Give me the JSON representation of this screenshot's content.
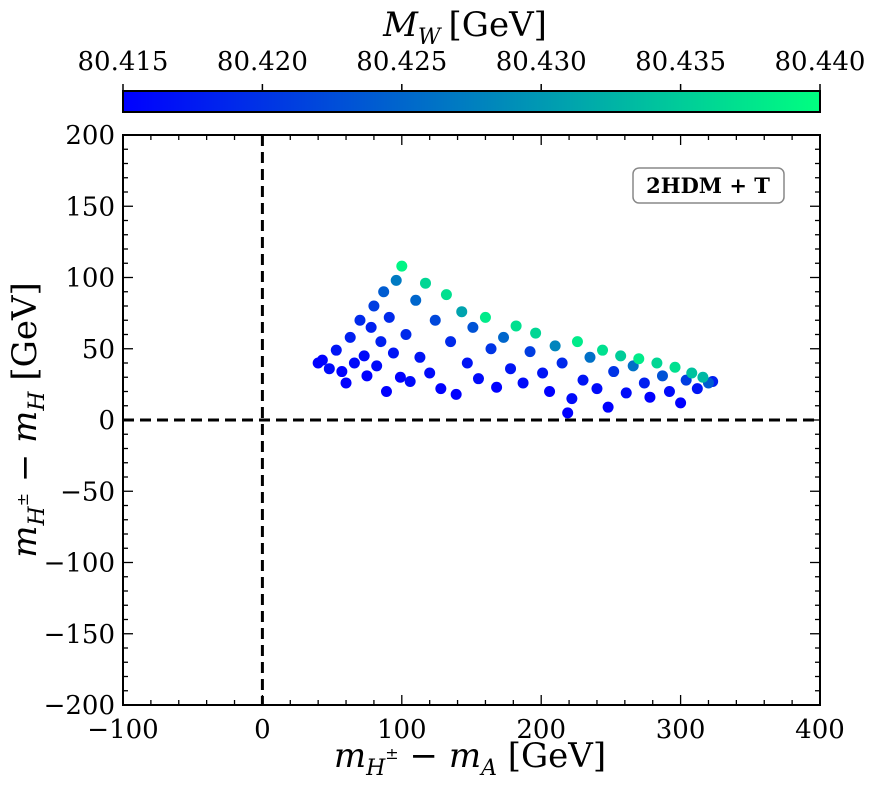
{
  "chart_data": {
    "type": "scatter",
    "title": "",
    "colorbar": {
      "label": "M_W [GeV]",
      "label_main": "M",
      "label_sub": "W",
      "label_unit": "[GeV]",
      "range": [
        80.415,
        80.44
      ],
      "ticks": [
        80.415,
        80.42,
        80.425,
        80.43,
        80.435,
        80.44
      ],
      "tick_labels": [
        "80.415",
        "80.420",
        "80.425",
        "80.430",
        "80.435",
        "80.440"
      ],
      "colormap": "winter",
      "color_low": "#0000ff",
      "color_high": "#00ff80",
      "placement": "top"
    },
    "xlabel": "m_{H±} − m_A [GeV]",
    "xlabel_parts": {
      "m1": "m",
      "sub1": "H",
      "sup1": "±",
      "minus": " − ",
      "m2": "m",
      "sub2": "A",
      "unit": " [GeV]"
    },
    "ylabel": "m_{H±} − m_H [GeV]",
    "ylabel_parts": {
      "m1": "m",
      "sub1": "H",
      "sup1": "±",
      "minus": " − ",
      "m2": "m",
      "sub2": "H",
      "unit": " [GeV]"
    },
    "xlim": [
      -100,
      400
    ],
    "ylim": [
      -200,
      200
    ],
    "xticks": [
      -100,
      0,
      100,
      200,
      300,
      400
    ],
    "xtick_labels": [
      "−100",
      "0",
      "100",
      "200",
      "300",
      "400"
    ],
    "yticks": [
      -200,
      -150,
      -100,
      -50,
      0,
      50,
      100,
      150,
      200
    ],
    "ytick_labels": [
      "−200",
      "−150",
      "−100",
      "−50",
      "0",
      "50",
      "100",
      "150",
      "200"
    ],
    "grid": false,
    "reference_lines": [
      {
        "orientation": "vertical",
        "value": 0,
        "style": "dashed"
      },
      {
        "orientation": "horizontal",
        "value": 0,
        "style": "dashed"
      }
    ],
    "legend": {
      "text": "2HDM + T",
      "position": "top-right"
    },
    "marker_color": "#1a3cff",
    "points": [
      [
        40,
        40,
        80.415
      ],
      [
        43,
        42,
        80.415
      ],
      [
        48,
        36,
        80.416
      ],
      [
        53,
        49,
        80.417
      ],
      [
        57,
        34,
        80.415
      ],
      [
        60,
        26,
        80.415
      ],
      [
        63,
        58,
        80.418
      ],
      [
        66,
        40,
        80.416
      ],
      [
        70,
        70,
        80.419
      ],
      [
        73,
        45,
        80.416
      ],
      [
        75,
        31,
        80.415
      ],
      [
        78,
        65,
        80.418
      ],
      [
        80,
        80,
        80.421
      ],
      [
        82,
        38,
        80.416
      ],
      [
        85,
        55,
        80.418
      ],
      [
        87,
        90,
        80.424
      ],
      [
        89,
        20,
        80.415
      ],
      [
        91,
        72,
        80.419
      ],
      [
        94,
        47,
        80.417
      ],
      [
        96,
        98,
        80.427
      ],
      [
        99,
        30,
        80.415
      ],
      [
        100,
        108,
        80.439
      ],
      [
        103,
        60,
        80.419
      ],
      [
        106,
        27,
        80.416
      ],
      [
        110,
        84,
        80.425
      ],
      [
        113,
        44,
        80.417
      ],
      [
        117,
        96,
        80.436
      ],
      [
        120,
        33,
        80.416
      ],
      [
        124,
        70,
        80.422
      ],
      [
        128,
        22,
        80.415
      ],
      [
        132,
        88,
        80.437
      ],
      [
        135,
        55,
        80.419
      ],
      [
        139,
        18,
        80.415
      ],
      [
        143,
        76,
        80.431
      ],
      [
        147,
        40,
        80.417
      ],
      [
        151,
        65,
        80.423
      ],
      [
        155,
        29,
        80.416
      ],
      [
        160,
        72,
        80.438
      ],
      [
        164,
        50,
        80.42
      ],
      [
        168,
        23,
        80.415
      ],
      [
        173,
        58,
        80.425
      ],
      [
        178,
        36,
        80.417
      ],
      [
        182,
        66,
        80.437
      ],
      [
        187,
        26,
        80.416
      ],
      [
        192,
        48,
        80.421
      ],
      [
        196,
        61,
        80.436
      ],
      [
        201,
        33,
        80.417
      ],
      [
        206,
        20,
        80.415
      ],
      [
        210,
        52,
        80.428
      ],
      [
        215,
        40,
        80.419
      ],
      [
        219,
        5,
        80.415
      ],
      [
        222,
        15,
        80.416
      ],
      [
        226,
        55,
        80.438
      ],
      [
        230,
        28,
        80.417
      ],
      [
        235,
        44,
        80.426
      ],
      [
        240,
        22,
        80.416
      ],
      [
        244,
        49,
        80.437
      ],
      [
        248,
        9,
        80.415
      ],
      [
        252,
        34,
        80.42
      ],
      [
        257,
        45,
        80.435
      ],
      [
        261,
        19,
        80.416
      ],
      [
        266,
        38,
        80.426
      ],
      [
        270,
        43,
        80.438
      ],
      [
        274,
        26,
        80.418
      ],
      [
        278,
        16,
        80.415
      ],
      [
        283,
        40,
        80.436
      ],
      [
        287,
        31,
        80.423
      ],
      [
        292,
        20,
        80.416
      ],
      [
        296,
        37,
        80.437
      ],
      [
        300,
        12,
        80.415
      ],
      [
        304,
        28,
        80.421
      ],
      [
        308,
        33,
        80.434
      ],
      [
        312,
        22,
        80.417
      ],
      [
        316,
        30,
        80.433
      ],
      [
        320,
        26,
        80.424
      ],
      [
        323,
        27,
        80.418
      ]
    ]
  }
}
